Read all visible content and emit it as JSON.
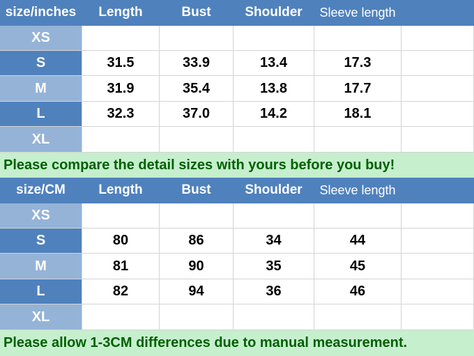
{
  "inches": {
    "headers": [
      "size/inches",
      "Length",
      "Bust",
      "Shoulder",
      "Sleeve length",
      ""
    ],
    "rows": [
      [
        "XS",
        "",
        "",
        "",
        "",
        ""
      ],
      [
        "S",
        "31.5",
        "33.9",
        "13.4",
        "17.3",
        ""
      ],
      [
        "M",
        "31.9",
        "35.4",
        "13.8",
        "17.7",
        ""
      ],
      [
        "L",
        "32.3",
        "37.0",
        "14.2",
        "18.1",
        ""
      ],
      [
        "XL",
        "",
        "",
        "",
        "",
        ""
      ]
    ],
    "note": "Please compare the detail sizes with yours before you buy!"
  },
  "cm": {
    "headers": [
      "size/CM",
      "Length",
      "Bust",
      "Shoulder",
      "Sleeve length",
      ""
    ],
    "rows": [
      [
        "XS",
        "",
        "",
        "",
        "",
        ""
      ],
      [
        "S",
        "80",
        "86",
        "34",
        "44",
        ""
      ],
      [
        "M",
        "81",
        "90",
        "35",
        "45",
        ""
      ],
      [
        "L",
        "82",
        "94",
        "36",
        "46",
        ""
      ],
      [
        "XL",
        "",
        "",
        "",
        "",
        ""
      ]
    ],
    "note": "Please allow 1-3CM differences due to manual measurement."
  },
  "colors": {
    "header": "#4f81bd",
    "size_light": "#95b3d7",
    "banner_bg": "#c6efce",
    "banner_text": "#006100"
  }
}
